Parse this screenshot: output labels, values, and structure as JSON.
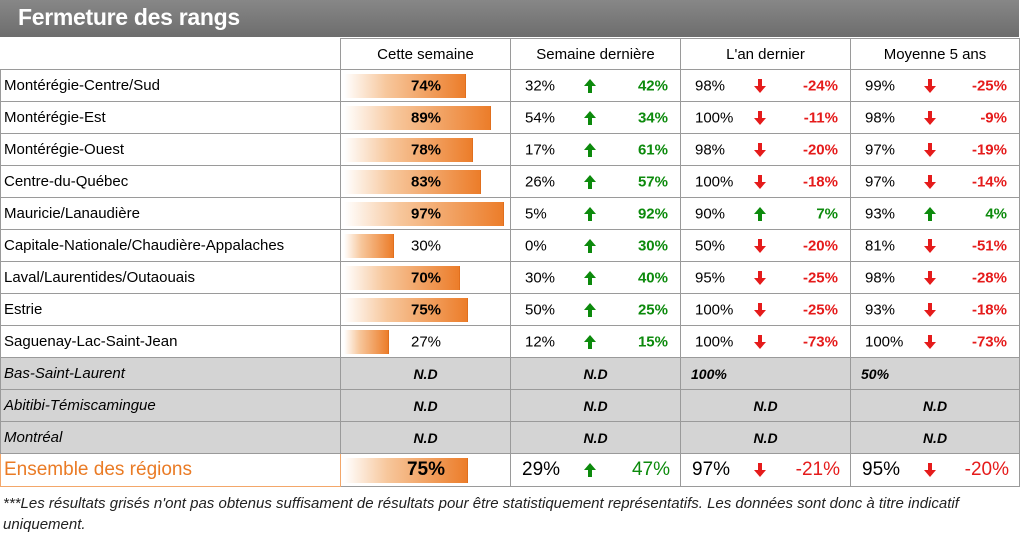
{
  "title": "Fermeture des rangs",
  "headers": [
    "Cette semaine",
    "Semaine dernière",
    "L'an dernier",
    "Moyenne 5 ans"
  ],
  "colors": {
    "up": "#0c8a0c",
    "down": "#e51b1b",
    "bar": "#ec7d2a",
    "na_bg": "#d4d4d4",
    "total_label": "#ea7b25"
  },
  "chart_data": {
    "type": "table",
    "title": "Fermeture des rangs",
    "columns": [
      "Cette semaine",
      "Semaine dernière",
      "L'an dernier",
      "Moyenne 5 ans"
    ],
    "rows": [
      {
        "region": "Montérégie-Centre/Sud",
        "this_week": 74,
        "this_week_label": "74%",
        "cols": [
          {
            "value": "32%",
            "arrow": "up",
            "delta": "42%"
          },
          {
            "value": "98%",
            "arrow": "down",
            "delta": "-24%"
          },
          {
            "value": "99%",
            "arrow": "down",
            "delta": "-25%"
          }
        ]
      },
      {
        "region": "Montérégie-Est",
        "this_week": 89,
        "this_week_label": "89%",
        "cols": [
          {
            "value": "54%",
            "arrow": "up",
            "delta": "34%"
          },
          {
            "value": "100%",
            "arrow": "down",
            "delta": "-11%"
          },
          {
            "value": "98%",
            "arrow": "down",
            "delta": "-9%"
          }
        ]
      },
      {
        "region": "Montérégie-Ouest",
        "this_week": 78,
        "this_week_label": "78%",
        "cols": [
          {
            "value": "17%",
            "arrow": "up",
            "delta": "61%"
          },
          {
            "value": "98%",
            "arrow": "down",
            "delta": "-20%"
          },
          {
            "value": "97%",
            "arrow": "down",
            "delta": "-19%"
          }
        ]
      },
      {
        "region": "Centre-du-Québec",
        "this_week": 83,
        "this_week_label": "83%",
        "cols": [
          {
            "value": "26%",
            "arrow": "up",
            "delta": "57%"
          },
          {
            "value": "100%",
            "arrow": "down",
            "delta": "-18%"
          },
          {
            "value": "97%",
            "arrow": "down",
            "delta": "-14%"
          }
        ]
      },
      {
        "region": "Mauricie/Lanaudière",
        "this_week": 97,
        "this_week_label": "97%",
        "cols": [
          {
            "value": "5%",
            "arrow": "up",
            "delta": "92%"
          },
          {
            "value": "90%",
            "arrow": "up",
            "delta": "7%"
          },
          {
            "value": "93%",
            "arrow": "up",
            "delta": "4%"
          }
        ]
      },
      {
        "region": "Capitale-Nationale/Chaudière-Appalaches",
        "this_week": 30,
        "this_week_label": "30%",
        "cols": [
          {
            "value": "0%",
            "arrow": "up",
            "delta": "30%"
          },
          {
            "value": "50%",
            "arrow": "down",
            "delta": "-20%"
          },
          {
            "value": "81%",
            "arrow": "down",
            "delta": "-51%"
          }
        ]
      },
      {
        "region": "Laval/Laurentides/Outaouais",
        "this_week": 70,
        "this_week_label": "70%",
        "cols": [
          {
            "value": "30%",
            "arrow": "up",
            "delta": "40%"
          },
          {
            "value": "95%",
            "arrow": "down",
            "delta": "-25%"
          },
          {
            "value": "98%",
            "arrow": "down",
            "delta": "-28%"
          }
        ]
      },
      {
        "region": "Estrie",
        "this_week": 75,
        "this_week_label": "75%",
        "cols": [
          {
            "value": "50%",
            "arrow": "up",
            "delta": "25%"
          },
          {
            "value": "100%",
            "arrow": "down",
            "delta": "-25%"
          },
          {
            "value": "93%",
            "arrow": "down",
            "delta": "-18%"
          }
        ]
      },
      {
        "region": "Saguenay-Lac-Saint-Jean",
        "this_week": 27,
        "this_week_label": "27%",
        "cols": [
          {
            "value": "12%",
            "arrow": "up",
            "delta": "15%"
          },
          {
            "value": "100%",
            "arrow": "down",
            "delta": "-73%"
          },
          {
            "value": "100%",
            "arrow": "down",
            "delta": "-73%"
          }
        ]
      }
    ],
    "na_rows": [
      {
        "region": "Bas-Saint-Laurent",
        "cells": [
          "N.D",
          "N.D",
          "100%",
          "50%"
        ]
      },
      {
        "region": "Abitibi-Témiscamingue",
        "cells": [
          "N.D",
          "N.D",
          "N.D",
          "N.D"
        ]
      },
      {
        "region": "Montréal",
        "cells": [
          "N.D",
          "N.D",
          "N.D",
          "N.D"
        ]
      }
    ],
    "total": {
      "region": "Ensemble des régions",
      "this_week": 75,
      "this_week_label": "75%",
      "cols": [
        {
          "value": "29%",
          "arrow": "up",
          "delta": "47%"
        },
        {
          "value": "97%",
          "arrow": "down",
          "delta": "-21%"
        },
        {
          "value": "95%",
          "arrow": "down",
          "delta": "-20%"
        }
      ]
    }
  },
  "footnote": "***Les résultats grisés n'ont pas obtenus suffisament de résultats pour être statistiquement représentatifs. Les données sont donc à titre indicatif uniquement."
}
